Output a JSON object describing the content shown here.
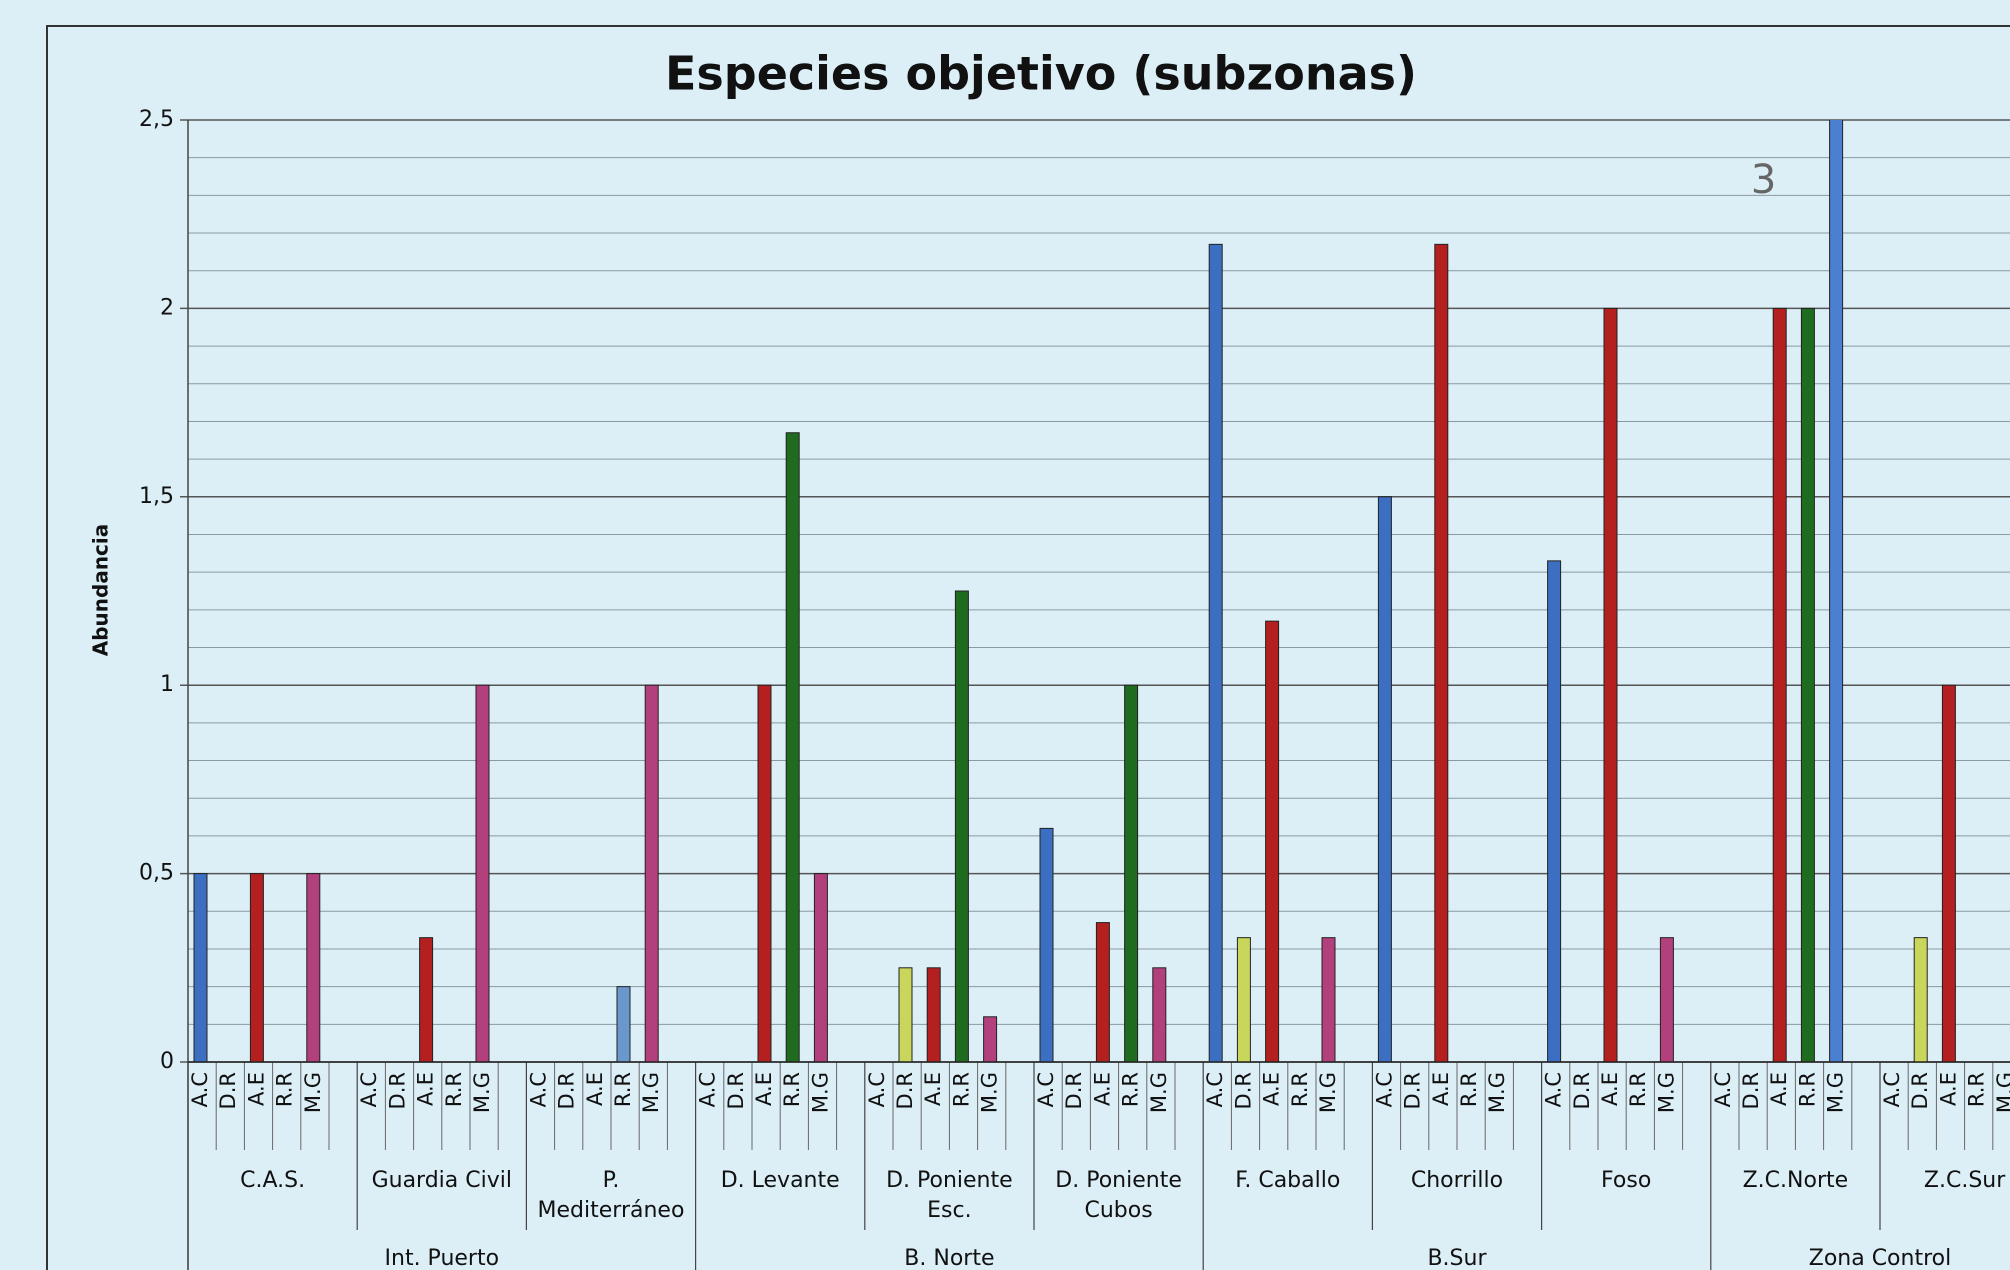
{
  "chart_data": {
    "type": "bar",
    "title": "Especies objetivo (subzonas)",
    "y_label": "Abundancia",
    "groups": [
      {
        "name": "Int. Puerto",
        "categories": [
          "C.A.S.",
          "Guardia Civil",
          "P. Mediterráneo"
        ]
      },
      {
        "name": "B. Norte",
        "categories": [
          "D. Levante",
          "D. Poniente Esc.",
          "D. Poniente Cubos"
        ]
      },
      {
        "name": "B.Sur",
        "categories": [
          "F. Caballo",
          "Chorrillo",
          "Foso"
        ]
      },
      {
        "name": "Zona Control",
        "categories": [
          "Z.C.Norte",
          "Z.C.Sur"
        ]
      }
    ],
    "series": [
      {
        "name": "A.C",
        "colors": [
          "#3c6fc2",
          "#3c6fc2",
          "#3c6fc2",
          "#3c6fc2",
          "#3c6fc2",
          "#3c6fc2",
          "#3c6fc2",
          "#3c6fc2",
          "#3c6fc2",
          "#3c6fc2",
          "#3c6fc2"
        ],
        "values": [
          0.5,
          0,
          0,
          0,
          0,
          0.62,
          2.17,
          1.5,
          1.33,
          0,
          0
        ]
      },
      {
        "name": "D.R",
        "colors": [
          "#c9d65c",
          "#c9d65c",
          "#c9d65c",
          "#c9d65c",
          "#c9d65c",
          "#c9d65c",
          "#c9d65c",
          "#c9d65c",
          "#c9d65c",
          "#c9d65c",
          "#c9d65c"
        ],
        "values": [
          0,
          0,
          0,
          0,
          0.25,
          0,
          0.33,
          0,
          0,
          0,
          0.33
        ]
      },
      {
        "name": "A.E",
        "colors": [
          "#b3201f",
          "#b3201f",
          "#b3201f",
          "#b3201f",
          "#b3201f",
          "#b3201f",
          "#b3201f",
          "#b3201f",
          "#b3201f",
          "#b3201f",
          "#b3201f"
        ],
        "values": [
          0.5,
          0.33,
          0,
          1,
          0.25,
          0.37,
          1.17,
          2.17,
          2,
          2,
          1
        ]
      },
      {
        "name": "R.R",
        "colors": [
          "#1f6b1f",
          "#1f6b1f",
          "#6a98cc",
          "#1f6b1f",
          "#1f6b1f",
          "#1f6b1f",
          "#1f6b1f",
          "#1f6b1f",
          "#1f6b1f",
          "#1f6b1f",
          "#1f6b1f"
        ],
        "values": [
          0,
          0,
          0.2,
          1.67,
          1.25,
          1,
          0,
          0,
          0,
          2,
          0
        ]
      },
      {
        "name": "M.G",
        "colors": [
          "#b2407c",
          "#b2407c",
          "#b2407c",
          "#b2407c",
          "#b2407c",
          "#b2407c",
          "#b2407c",
          "#b2407c",
          "#b2407c",
          "#4a80cf",
          "#b2407c"
        ],
        "values": [
          0.5,
          1,
          1,
          0.5,
          0.12,
          0.25,
          0.33,
          0,
          0.33,
          3,
          0
        ],
        "value_labels": [
          null,
          null,
          null,
          null,
          null,
          null,
          null,
          null,
          null,
          "3",
          null
        ]
      }
    ],
    "ylim": [
      0,
      2.5
    ],
    "yticks": [
      0,
      {
        "value": 0.5,
        "label": "0,5"
      },
      1,
      {
        "value": 1.5,
        "label": "1,5"
      },
      2,
      {
        "value": 2.5,
        "label": "2,5"
      }
    ],
    "yminorticks": [
      0.1,
      0.2,
      0.3,
      0.4,
      0.6,
      0.7,
      0.8,
      0.9,
      1.1,
      1.2,
      1.3,
      1.4,
      1.6,
      1.7,
      1.8,
      1.9,
      2.1,
      2.2,
      2.3,
      2.4
    ],
    "grid": true
  }
}
